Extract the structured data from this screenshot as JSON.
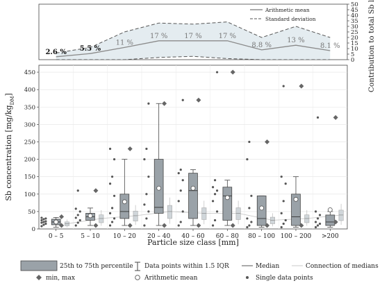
{
  "chart_data": [
    {
      "type": "line",
      "categories": [
        "0 – 5",
        "5 – 10",
        "10 – 20",
        "20 – 40",
        "40 – 60",
        "60 – 80",
        "80 – 100",
        "100 – 200",
        ">200"
      ],
      "ylabel": "Contribution to total Sb load [%]",
      "ylim": [
        0,
        50
      ],
      "yticks": [
        0,
        5,
        10,
        15,
        20,
        25,
        30,
        35,
        40,
        45,
        50
      ],
      "mean_label": "Arithmetic mean",
      "sd_label": "Standard deviation",
      "mean": [
        2.6,
        5.5,
        11,
        17,
        17,
        17,
        8.8,
        13,
        8.1
      ],
      "sd_upper": [
        6,
        11,
        25,
        33,
        32,
        34,
        20,
        30,
        20
      ],
      "sd_lower": [
        0,
        0,
        0,
        2,
        3,
        1,
        0,
        0,
        0
      ],
      "labels": [
        "2.6 %",
        "5.5 %",
        "11 %",
        "17 %",
        "17 %",
        "17 %",
        "8.8 %",
        "13 %",
        "8.1 %"
      ],
      "bold_labels": [
        true,
        true,
        false,
        false,
        false,
        false,
        false,
        false,
        false
      ],
      "colors": {
        "mean": "#8a8a8a",
        "sd": "#555555",
        "fill": "#d9e4ea"
      }
    },
    {
      "type": "box",
      "xlabel": "Particle size class [mm]",
      "ylabel": "Sb concentration [mg/kg",
      "ylabel_sub": "DM",
      "ylabel_end": "]",
      "ylim": [
        0,
        470
      ],
      "yticks": [
        0,
        50,
        100,
        150,
        200,
        250,
        300,
        350,
        400,
        450
      ],
      "categories": [
        "0 – 5",
        "5 – 10",
        "10 – 20",
        "20 – 40",
        "40 – 60",
        "60 – 80",
        "80 – 100",
        "100 – 200",
        ">200"
      ],
      "boxes": [
        {
          "q1": 12,
          "median": 20,
          "q3": 28,
          "whisker_low": 5,
          "whisker_high": 33,
          "mean": 20,
          "min": 10,
          "max": 35,
          "points": [
            8,
            12,
            15,
            18,
            20,
            22,
            25,
            28,
            30,
            32
          ]
        },
        {
          "q1": 25,
          "median": 35,
          "q3": 45,
          "whisker_low": 10,
          "whisker_high": 60,
          "mean": 38,
          "min": 10,
          "max": 110,
          "points": [
            10,
            18,
            25,
            32,
            40,
            50,
            58,
            110
          ]
        },
        {
          "q1": 30,
          "median": 50,
          "q3": 100,
          "whisker_low": 10,
          "whisker_high": 200,
          "mean": 78,
          "min": 10,
          "max": 230,
          "points": [
            10,
            20,
            30,
            45,
            60,
            95,
            130,
            150,
            200,
            230
          ]
        },
        {
          "q1": 45,
          "median": 62,
          "q3": 200,
          "whisker_low": 10,
          "whisker_high": 360,
          "mean": 117,
          "min": 10,
          "max": 360,
          "points": [
            10,
            30,
            50,
            70,
            100,
            150,
            200,
            230,
            360
          ]
        },
        {
          "q1": 30,
          "median": 110,
          "q3": 160,
          "whisker_low": 10,
          "whisker_high": 170,
          "mean": 117,
          "min": 10,
          "max": 370,
          "points": [
            10,
            20,
            50,
            80,
            110,
            140,
            160,
            170,
            370
          ]
        },
        {
          "q1": 25,
          "median": 95,
          "q3": 120,
          "whisker_low": 10,
          "whisker_high": 140,
          "mean": 90,
          "min": 10,
          "max": 450,
          "points": [
            10,
            25,
            50,
            80,
            100,
            110,
            120,
            140,
            450
          ]
        },
        {
          "q1": 10,
          "median": 30,
          "q3": 95,
          "whisker_low": 5,
          "whisker_high": 95,
          "mean": 60,
          "min": 10,
          "max": 250,
          "points": [
            5,
            10,
            20,
            30,
            60,
            95,
            200,
            250
          ]
        },
        {
          "q1": 10,
          "median": 35,
          "q3": 100,
          "whisker_low": 5,
          "whisker_high": 150,
          "mean": 85,
          "min": 10,
          "max": 410,
          "points": [
            5,
            15,
            25,
            45,
            80,
            130,
            150,
            410
          ]
        },
        {
          "q1": 10,
          "median": 20,
          "q3": 40,
          "whisker_low": 5,
          "whisker_high": 50,
          "mean": 55,
          "min": 20,
          "max": 320,
          "points": [
            5,
            10,
            15,
            20,
            30,
            40,
            50,
            320
          ]
        }
      ],
      "median_connection": [
        15,
        30,
        38,
        50,
        45,
        45,
        25,
        30,
        40
      ],
      "legend": {
        "box": "25th to 75th percentile",
        "whisker": "Data points within 1.5 IQR",
        "median": "Median",
        "connection": "Connection of medians",
        "minmax": "min, max",
        "mean": "Arithmetic mean",
        "points": "Single data points"
      },
      "colors": {
        "box": "#9aa2a8",
        "box_stroke": "#444444",
        "marker": "#666666",
        "light": "#d0d6da"
      }
    }
  ]
}
